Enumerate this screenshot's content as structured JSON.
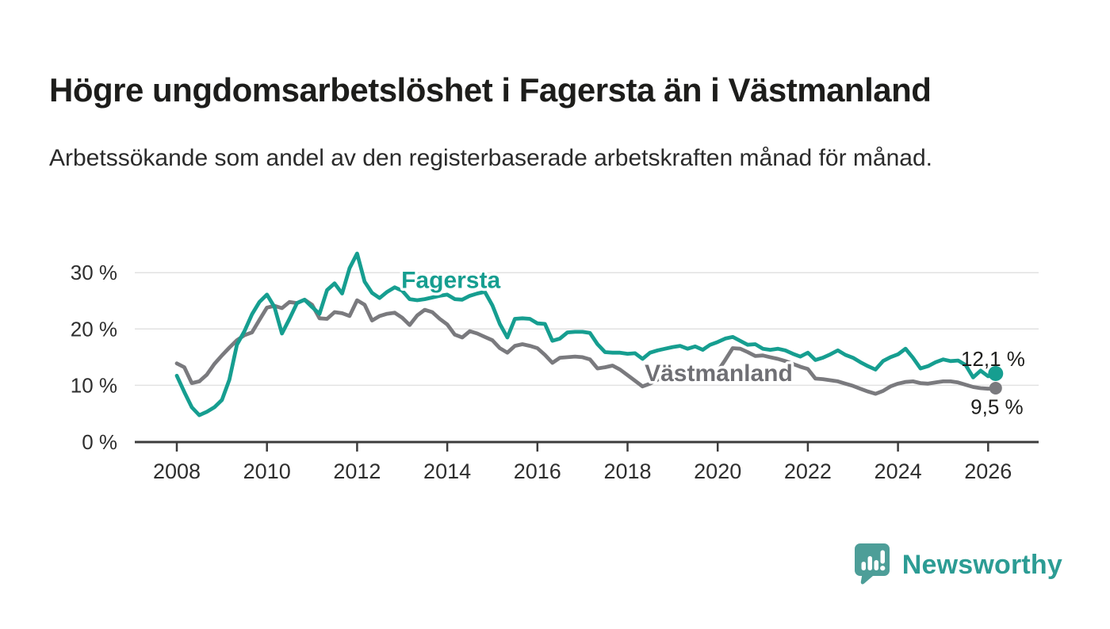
{
  "header": {
    "title": "Högre ungdomsarbetslöshet i Fagersta än i Västmanland",
    "subtitle": "Arbetssökande som andel av den registerbaserade arbetskraften månad för månad."
  },
  "chart_data": {
    "type": "line",
    "unit": "%",
    "grid": "horizontal-only",
    "legend_position": "inline-labels-on-lines",
    "x_axis": {
      "tick_years": [
        2008,
        2010,
        2012,
        2014,
        2016,
        2018,
        2020,
        2022,
        2024,
        2026
      ]
    },
    "y_axis": {
      "ticks": [
        {
          "value": 0,
          "label": "0 %"
        },
        {
          "value": 10,
          "label": "10 %"
        },
        {
          "value": 20,
          "label": "20 %"
        },
        {
          "value": 30,
          "label": "30 %"
        }
      ],
      "range": [
        0,
        35
      ]
    },
    "sampling": {
      "start_year": 2008.0,
      "points_per_year": 6,
      "end_year": 2026.17
    },
    "series": [
      {
        "name": "Fagersta",
        "slug": "fagersta",
        "color": "#169E90",
        "label_color": "#169E90",
        "dot_radius": 9.5,
        "end_value": 12.1,
        "end_label": "12,1 %",
        "name_label_pos": {
          "year": 2012.98,
          "value": 28.7
        },
        "end_label_pos": {
          "year": 2026.82,
          "value": 14.7
        },
        "values": [
          11.7,
          8.8,
          6.1,
          4.7,
          5.3,
          6.1,
          7.4,
          11.0,
          17.2,
          19.6,
          22.6,
          24.8,
          26.1,
          23.9,
          19.2,
          21.8,
          24.6,
          25.2,
          23.9,
          22.7,
          26.9,
          28.1,
          26.3,
          30.8,
          33.4,
          28.4,
          26.4,
          25.5,
          26.6,
          27.4,
          26.8,
          25.3,
          25.1,
          25.3,
          25.6,
          25.9,
          26.1,
          25.3,
          25.2,
          25.9,
          26.3,
          26.6,
          24.2,
          20.9,
          18.5,
          21.8,
          21.9,
          21.8,
          21.0,
          20.9,
          17.9,
          18.3,
          19.4,
          19.5,
          19.5,
          19.3,
          17.3,
          15.9,
          15.8,
          15.8,
          15.6,
          15.7,
          14.7,
          15.8,
          16.2,
          16.5,
          16.8,
          17.0,
          16.5,
          16.9,
          16.3,
          17.2,
          17.7,
          18.3,
          18.6,
          17.9,
          17.2,
          17.3,
          16.5,
          16.3,
          16.5,
          16.2,
          15.6,
          15.1,
          15.8,
          14.5,
          14.9,
          15.5,
          16.2,
          15.4,
          14.9,
          14.1,
          13.4,
          12.8,
          14.3,
          15.0,
          15.5,
          16.5,
          14.9,
          13.0,
          13.4,
          14.1,
          14.6,
          14.3,
          14.4,
          13.6,
          11.4,
          12.6,
          11.6,
          12.1
        ]
      },
      {
        "name": "Västmanland",
        "slug": "vastmanland",
        "color": "#7A7A7E",
        "label_color": "#6F6F74",
        "dot_radius": 8,
        "end_value": 9.5,
        "end_label": "9,5 %",
        "name_label_pos": {
          "year": 2018.38,
          "value": 12.2
        },
        "end_label_pos": {
          "year": 2026.78,
          "value": 6.2
        },
        "values": [
          13.9,
          13.2,
          10.4,
          10.7,
          11.9,
          13.8,
          15.3,
          16.7,
          18.0,
          18.9,
          19.4,
          21.6,
          23.8,
          24.1,
          23.7,
          24.8,
          24.6,
          25.2,
          24.3,
          21.9,
          21.8,
          23.0,
          22.8,
          22.3,
          25.1,
          24.3,
          21.5,
          22.3,
          22.7,
          22.9,
          22.0,
          20.7,
          22.4,
          23.4,
          23.0,
          21.8,
          20.8,
          19.0,
          18.5,
          19.6,
          19.2,
          18.6,
          18.0,
          16.6,
          15.8,
          17.0,
          17.3,
          17.0,
          16.6,
          15.4,
          14.0,
          14.9,
          15.0,
          15.1,
          15.0,
          14.6,
          13.0,
          13.2,
          13.5,
          12.8,
          11.8,
          10.8,
          9.8,
          10.3,
          11.0,
          11.7,
          12.1,
          12.3,
          12.5,
          12.3,
          12.1,
          12.3,
          12.5,
          14.5,
          16.6,
          16.5,
          15.9,
          15.2,
          15.3,
          15.0,
          14.7,
          14.3,
          13.8,
          13.3,
          12.9,
          11.2,
          11.1,
          10.9,
          10.7,
          10.3,
          9.9,
          9.4,
          8.9,
          8.5,
          9.0,
          9.8,
          10.3,
          10.6,
          10.7,
          10.4,
          10.3,
          10.5,
          10.7,
          10.7,
          10.5,
          10.1,
          9.7,
          9.5,
          9.4,
          9.5
        ]
      }
    ],
    "colors": {
      "grid": "#E2E2E2",
      "axis": "#3C3C3C",
      "tick_label": "#2E2E2E",
      "value_label": "#1D1D1B"
    }
  },
  "branding": {
    "wordmark": "Newsworthy",
    "wordmark_color": "#2C9C94",
    "icon": "newsworthy-speech-bubble-bar-chart-icon",
    "icon_color": "#4D9E98"
  }
}
